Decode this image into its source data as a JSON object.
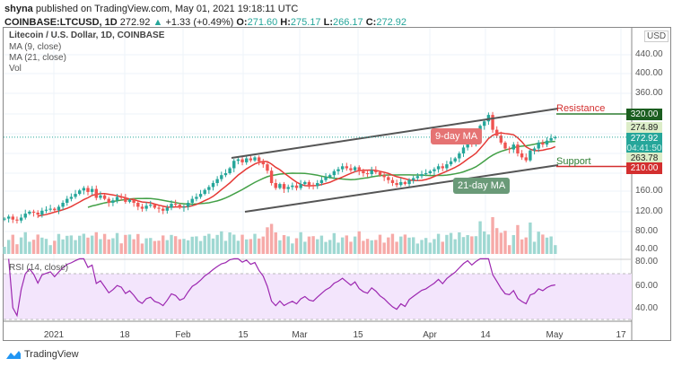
{
  "header": {
    "publisher": "shyna",
    "published_text": "published on TradingView.com, May 01, 2021 19:18:11 UTC",
    "symbol": "COINBASE:LTCUSD, 1D",
    "last": "272.92",
    "change": "+1.33 (+0.49%)",
    "o_label": "O:",
    "o": "271.60",
    "h_label": "H:",
    "h": "275.17",
    "l_label": "L:",
    "l": "266.17",
    "c_label": "C:",
    "c": "272.92"
  },
  "legend": {
    "title": "Litecoin / U.S. Dollar, 1D, COINBASE",
    "ma9": "MA (9, close)",
    "ma21": "MA (21, close)",
    "vol": "Vol",
    "rsi": "RSI (14, close)"
  },
  "annotations": {
    "ma9": "9-day MA",
    "ma21": "21-day MA",
    "resistance": "Resistance",
    "support": "Support"
  },
  "price_axis": {
    "currency": "USD",
    "ticks": [
      "440.00",
      "400.00",
      "360.00",
      "160.00",
      "120.00",
      "80.00",
      "40.00"
    ],
    "pills": {
      "resistance": "320.00",
      "high": "274.89",
      "last": "272.92",
      "countdown": "04:41:50",
      "low": "263.78",
      "support": "210.00"
    }
  },
  "rsi_axis": [
    "80.00",
    "60.00",
    "40.00"
  ],
  "time_axis": [
    "2021",
    "18",
    "Feb",
    "15",
    "Mar",
    "15",
    "Apr",
    "14",
    "May",
    "17"
  ],
  "branding": "TradingView",
  "colors": {
    "up": "#26a69a",
    "down": "#ef5350",
    "ma9": "#e53935",
    "ma21": "#43a047",
    "rsi": "#9c27b0"
  },
  "chart_data": {
    "type": "candlestick",
    "start_date": "2020-12-20",
    "end_date": "2021-05-01",
    "closes": [
      108,
      112,
      106,
      104,
      110,
      118,
      122,
      120,
      116,
      124,
      126,
      128,
      125,
      132,
      140,
      148,
      152,
      158,
      165,
      170,
      162,
      168,
      150,
      155,
      148,
      140,
      145,
      152,
      150,
      142,
      146,
      140,
      132,
      128,
      134,
      136,
      130,
      128,
      124,
      130,
      138,
      136,
      130,
      132,
      140,
      148,
      152,
      158,
      166,
      172,
      180,
      188,
      196,
      200,
      210,
      225,
      228,
      222,
      230,
      226,
      232,
      224,
      218,
      205,
      180,
      170,
      178,
      168,
      172,
      175,
      170,
      178,
      182,
      176,
      174,
      180,
      186,
      192,
      196,
      204,
      208,
      214,
      210,
      206,
      212,
      204,
      200,
      198,
      206,
      202,
      196,
      192,
      186,
      180,
      176,
      182,
      178,
      186,
      190,
      194,
      198,
      200,
      204,
      208,
      214,
      210,
      218,
      224,
      230,
      240,
      252,
      262,
      258,
      270,
      296,
      305,
      318,
      288,
      276,
      262,
      250,
      248,
      258,
      240,
      232,
      226,
      246,
      250,
      262,
      258,
      266,
      271,
      273
    ],
    "ylim": [
      40,
      460
    ],
    "resistance": 320,
    "support": 210
  }
}
